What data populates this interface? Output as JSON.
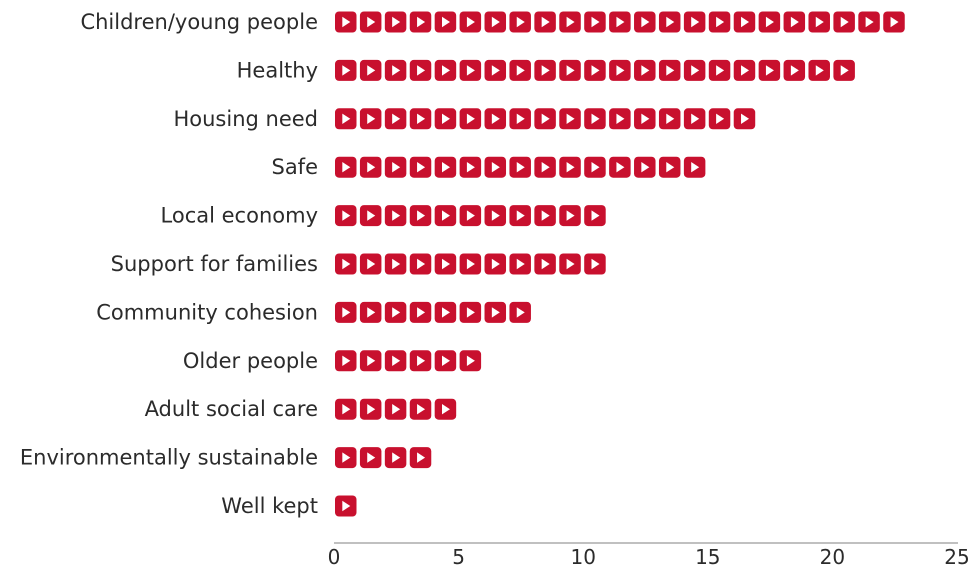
{
  "chart_data": {
    "type": "bar",
    "orientation": "horizontal",
    "categories": [
      "Children/young people",
      "Healthy",
      "Housing need",
      "Safe",
      "Local economy",
      "Support for families",
      "Community cohesion",
      "Older people",
      "Adult social care",
      "Environmentally sustainable",
      "Well kept"
    ],
    "values": [
      23,
      21,
      17,
      15,
      11,
      11,
      8,
      6,
      5,
      4,
      1
    ],
    "xlim": [
      0,
      25
    ],
    "xticks": [
      0,
      5,
      10,
      15,
      20,
      25
    ],
    "title": "",
    "xlabel": "",
    "ylabel": "",
    "grid": false,
    "legend": "none",
    "mark_style": "one play-button icon per unit",
    "colors": {
      "icon_fill": "#c8102e",
      "icon_glyph": "#ffffff",
      "axis": "#9a9a9a",
      "text": "#2b2b2b"
    }
  }
}
